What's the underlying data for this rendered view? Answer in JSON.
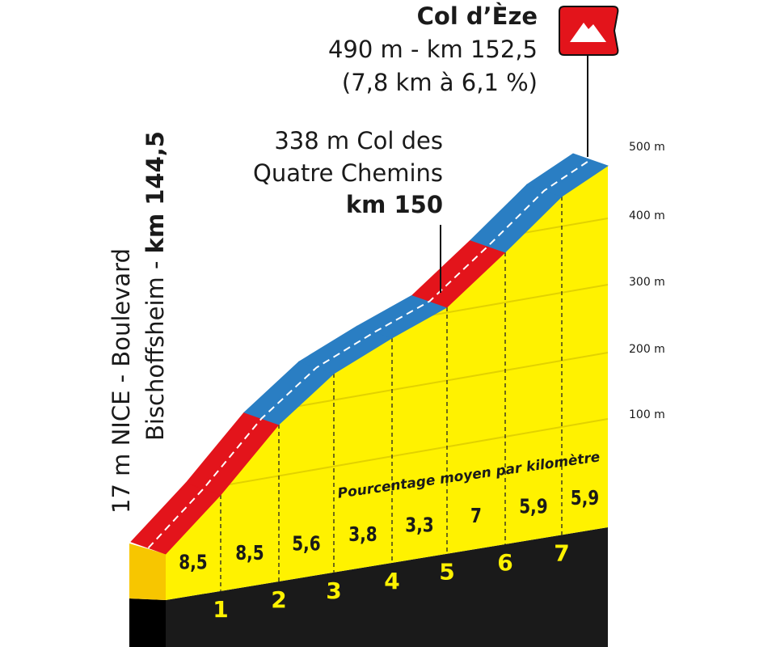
{
  "summit": {
    "name": "Col d’Èze",
    "altitude": "490 m - km 152,5",
    "climb": "(7,8 km à 6,1 %)"
  },
  "waypoint": {
    "line1": "338 m Col des",
    "line2": "Quatre Chemins",
    "km": "km 150"
  },
  "start": {
    "line1": "17 m NICE - Boulevard",
    "line2": "Bischoffsheim - ",
    "km": "km 144,5"
  },
  "altitude_labels": [
    "500 m",
    "400 m",
    "300 m",
    "200 m",
    "100 m"
  ],
  "legend": "Pourcentage moyen par kilomètre",
  "gradients": [
    "8,5",
    "8,5",
    "5,6",
    "3,8",
    "3,3",
    "7",
    "5,9",
    "5,9"
  ],
  "km_markers": [
    "1",
    "2",
    "3",
    "4",
    "5",
    "6",
    "7"
  ]
}
